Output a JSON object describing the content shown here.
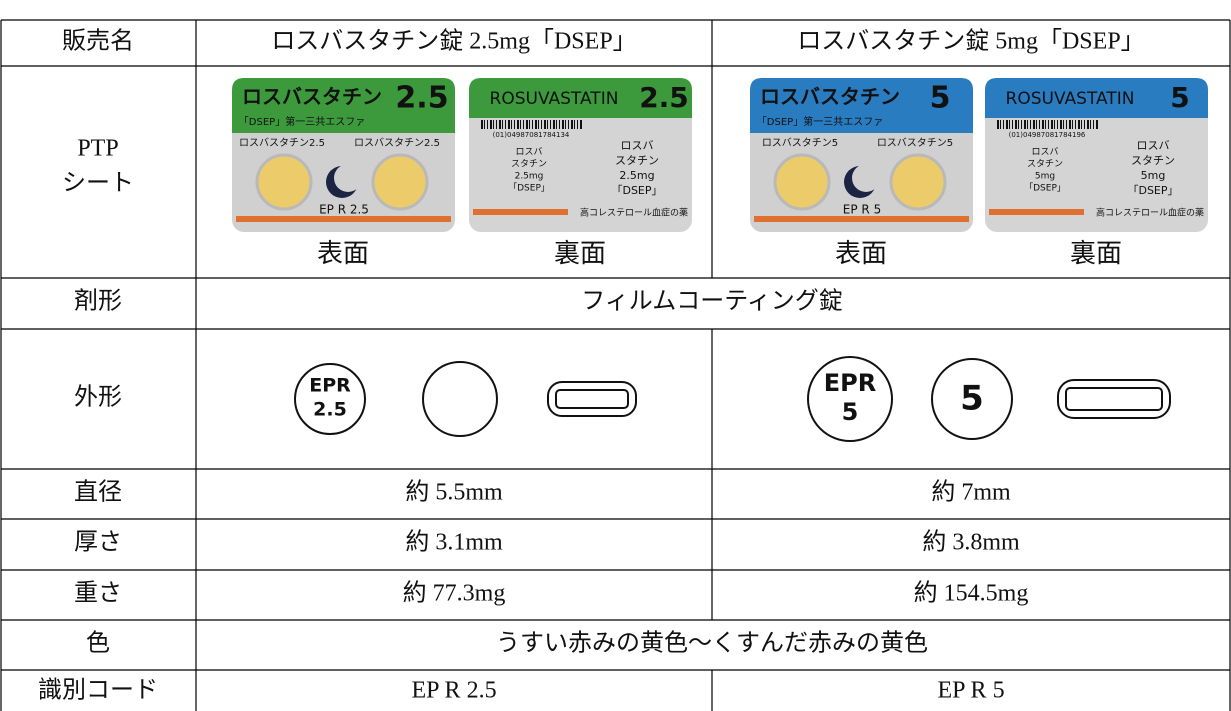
{
  "header": {
    "label": "販売名",
    "products": [
      "ロスバスタチン錠 2.5mg「DSEP」",
      "ロスバスタチン錠 5mg「DSEP」"
    ]
  },
  "ptp": {
    "label": [
      "PTP",
      "シート"
    ],
    "front_label": "表面",
    "back_label": "裏面",
    "products": [
      {
        "front": {
          "brand": "ロスバスタチン",
          "strength": "2.5",
          "maker": "「DSEP」第一三共エスファ",
          "line": "ロスバスタチン2.5",
          "imprint": "EP R 2.5"
        },
        "back": {
          "name": "ROSUVASTATIN",
          "strength": "2.5",
          "code": "(01)04987081784134",
          "label": [
            "ロスバ",
            "スタチン",
            "2.5mg",
            "「DSEP」"
          ],
          "note": "高コレステロール血症の薬"
        }
      },
      {
        "front": {
          "brand": "ロスバスタチン",
          "strength": "5",
          "maker": "「DSEP」第一三共エスファ",
          "line": "ロスバスタチン5",
          "imprint": "EP R 5"
        },
        "back": {
          "name": "ROSUVASTATIN",
          "strength": "5",
          "code": "(01)04987081784196",
          "label": [
            "ロスバ",
            "スタチン",
            "5mg",
            "「DSEP」"
          ],
          "note": "高コレステロール血症の薬"
        }
      }
    ]
  },
  "form": {
    "label": "剤形",
    "value": "フィルムコーティング錠"
  },
  "shape": {
    "label": "外形",
    "products": [
      {
        "imprint": [
          "EPR",
          "2.5"
        ]
      },
      {
        "imprint": [
          "EPR",
          "5"
        ],
        "back": "5"
      }
    ]
  },
  "rows": [
    {
      "label": "直径",
      "values": [
        "約 5.5mm",
        "約 7mm"
      ]
    },
    {
      "label": "厚さ",
      "values": [
        "約 3.1mm",
        "約 3.8mm"
      ]
    },
    {
      "label": "重さ",
      "values": [
        "約 77.3mg",
        "約 154.5mg"
      ]
    }
  ],
  "color": {
    "label": "色",
    "value": "うすい赤みの黄色～くすんだ赤みの黄色"
  },
  "code": {
    "label": "識別コード",
    "values": [
      "EP R 2.5",
      "EP R 5"
    ]
  }
}
